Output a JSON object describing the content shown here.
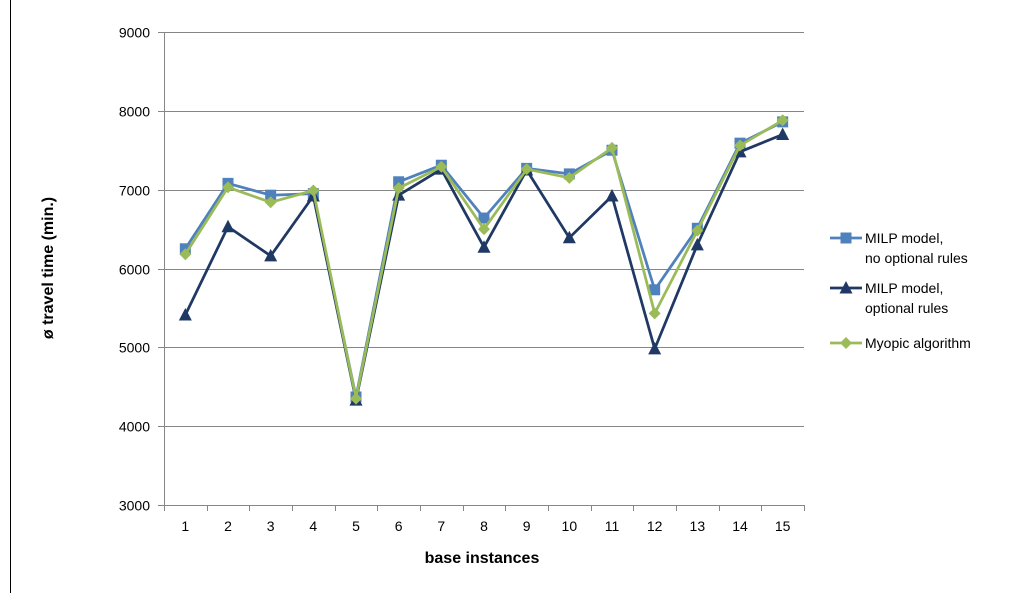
{
  "chart_data": {
    "type": "line",
    "title": "",
    "xlabel": "base instances",
    "ylabel": "ø travel time (min.)",
    "categories": [
      "1",
      "2",
      "3",
      "4",
      "5",
      "6",
      "7",
      "8",
      "9",
      "10",
      "11",
      "12",
      "13",
      "14",
      "15"
    ],
    "ylim": [
      3000,
      9000
    ],
    "yticks": [
      3000,
      4000,
      5000,
      6000,
      7000,
      8000,
      9000
    ],
    "grid": "horizontal",
    "legend_position": "right",
    "series": [
      {
        "name": "MILP model, no optional rules",
        "name_lines": [
          "MILP model,",
          "no optional rules"
        ],
        "marker": "square",
        "color": "#4F81BD",
        "values": [
          6250,
          7080,
          6930,
          6950,
          4370,
          7100,
          7310,
          6640,
          7270,
          7200,
          7500,
          5730,
          6510,
          7590,
          7860
        ]
      },
      {
        "name": "MILP model, optional rules",
        "name_lines": [
          "MILP model,",
          "optional rules"
        ],
        "marker": "triangle",
        "color": "#1F3864",
        "values": [
          5410,
          6530,
          6160,
          6920,
          4330,
          6930,
          7260,
          6270,
          7250,
          6390,
          6920,
          4980,
          6300,
          7480,
          7700
        ]
      },
      {
        "name": "Myopic algorithm",
        "name_lines": [
          "Myopic algorithm"
        ],
        "marker": "diamond",
        "color": "#9BBB59",
        "values": [
          6180,
          7030,
          6840,
          6990,
          4350,
          7020,
          7290,
          6500,
          7260,
          7150,
          7530,
          5430,
          6480,
          7560,
          7880
        ]
      }
    ]
  }
}
